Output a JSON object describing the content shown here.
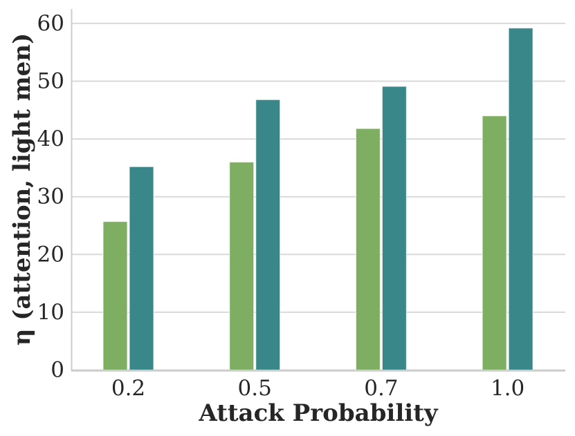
{
  "figure": {
    "background": "#ffffff",
    "text_color": "#262626",
    "grid_color": "#d9d9d9",
    "spine_color": "#cccccc"
  },
  "chart_data": {
    "type": "bar",
    "title": "",
    "xlabel": "Attack Probability",
    "ylabel": "η (attention, light men)",
    "categories": [
      "0.2",
      "0.5",
      "0.7",
      "1.0"
    ],
    "series": [
      {
        "name": "series-green",
        "color": "#7dae61",
        "values": [
          25.7,
          36.0,
          41.8,
          44.0
        ]
      },
      {
        "name": "series-teal",
        "color": "#398788",
        "values": [
          35.2,
          46.8,
          49.1,
          59.2
        ]
      }
    ],
    "yticks": [
      0,
      10,
      20,
      30,
      40,
      50,
      60
    ],
    "ylim": [
      0,
      62.5
    ],
    "grid": true,
    "grid_axis": "y",
    "legend": false,
    "bar_edge_color": "rgba(255,255,255,0.65)"
  }
}
